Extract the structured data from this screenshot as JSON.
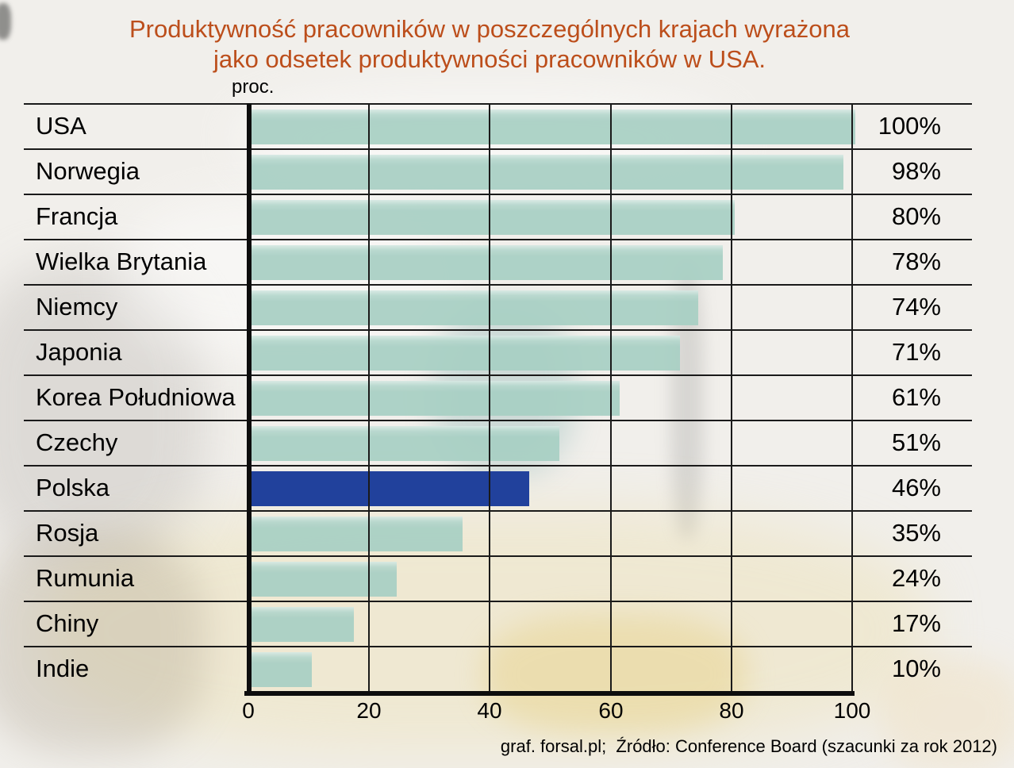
{
  "title": {
    "line1": "Produktywność pracowników w poszczególnych krajach wyrażona",
    "line2": "jako odsetek produktywności pracowników w USA.",
    "color": "#bc4e1b"
  },
  "footer": "graf. forsal.pl;  Źródło: Conference Board (szacunki za rok 2012)",
  "chart_data": {
    "type": "bar",
    "orientation": "horizontal",
    "title": "Produktywność pracowników w poszczególnych krajach wyrażona jako odsetek produktywności pracowników w USA.",
    "unit_label": "proc.",
    "categories": [
      "USA",
      "Norwegia",
      "Francja",
      "Wielka Brytania",
      "Niemcy",
      "Japonia",
      "Korea Południowa",
      "Czechy",
      "Polska",
      "Rosja",
      "Rumunia",
      "Chiny",
      "Indie"
    ],
    "values": [
      100,
      98,
      80,
      78,
      74,
      71,
      61,
      51,
      46,
      35,
      24,
      17,
      10
    ],
    "value_labels": [
      "100%",
      "98%",
      "80%",
      "78%",
      "74%",
      "71%",
      "61%",
      "51%",
      "46%",
      "35%",
      "24%",
      "17%",
      "10%"
    ],
    "highlight_category": "Polska",
    "x_ticks": [
      0,
      20,
      40,
      60,
      80,
      100
    ],
    "xlim": [
      0,
      100
    ],
    "grid": true,
    "legend": "none",
    "bar_color": "#a8d0c4",
    "highlight_color": "#21419c",
    "source": "Conference Board (szacunki za rok 2012)"
  }
}
